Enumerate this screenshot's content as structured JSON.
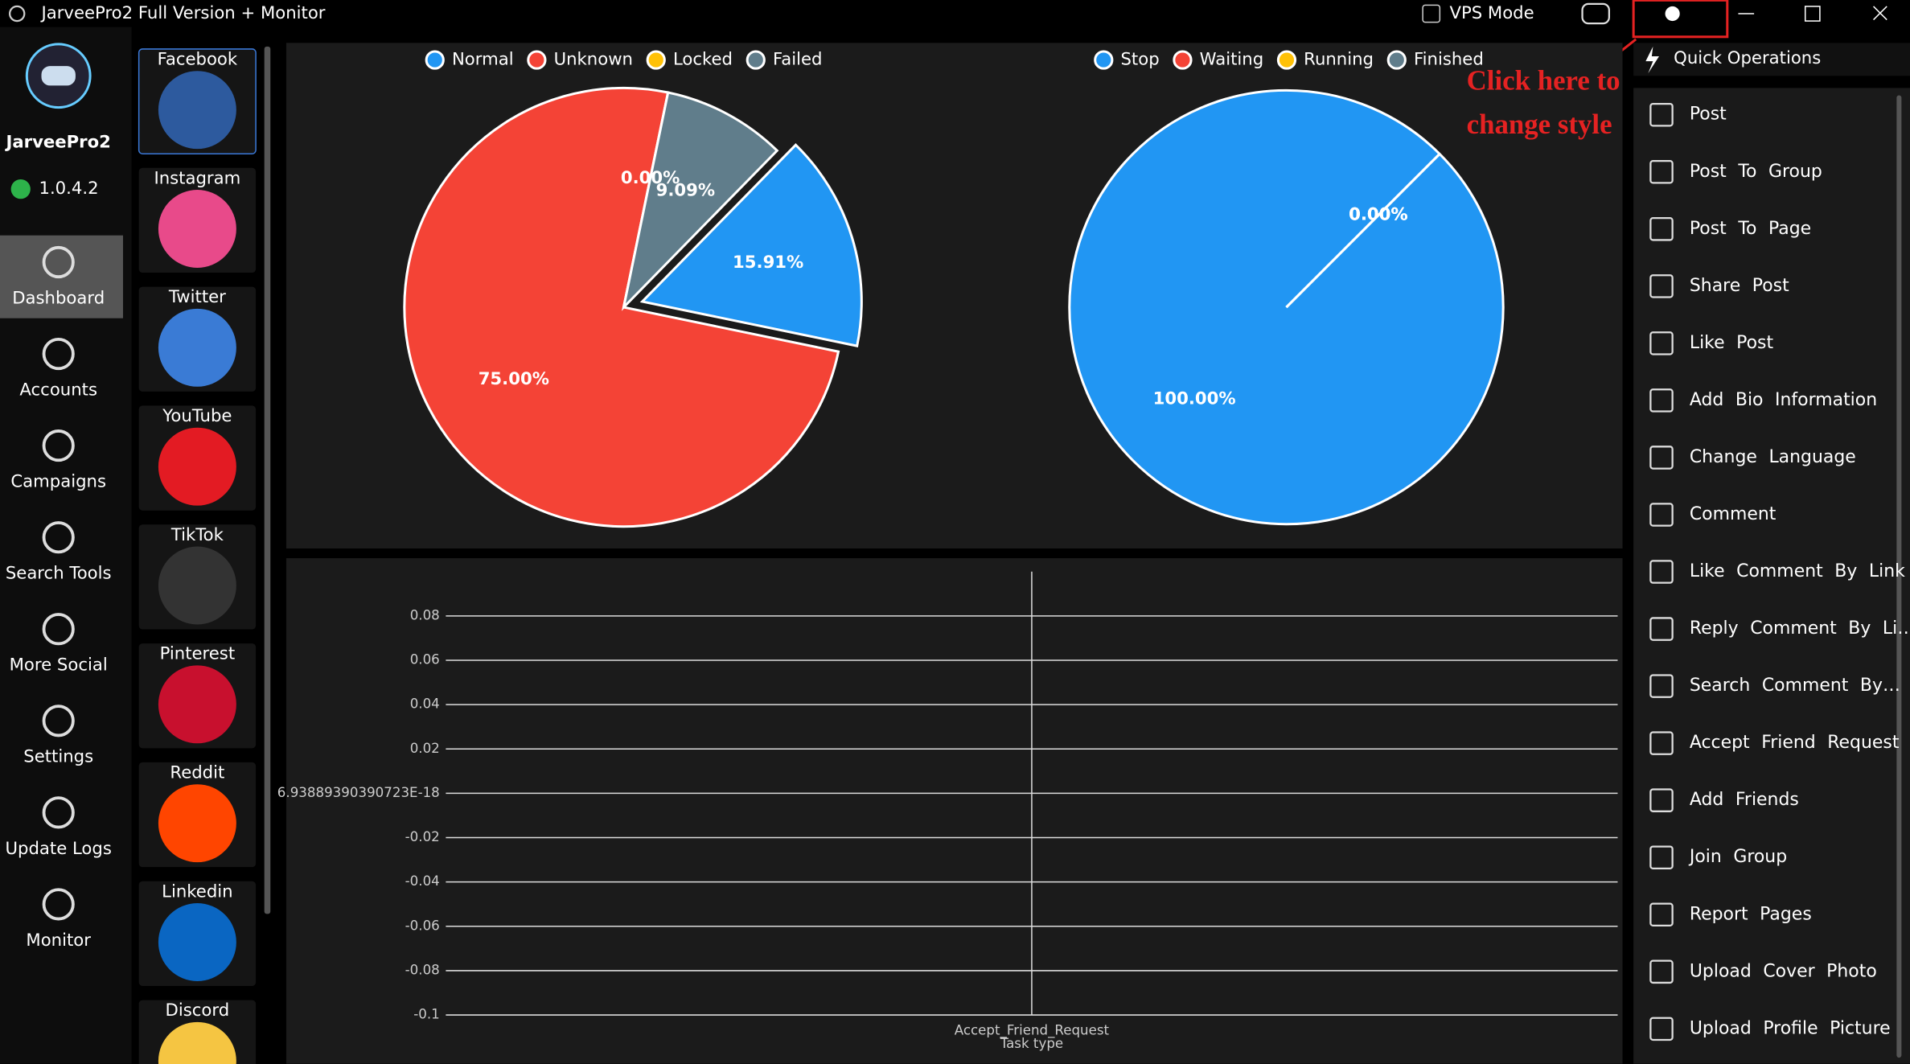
{
  "window": {
    "title": "JarveePro2 Full Version + Monitor",
    "vps_mode": "VPS Mode"
  },
  "annotation": [
    "Click here to",
    "change style"
  ],
  "sidebar": {
    "app_name": "JarveePro2",
    "version": "1.0.4.2",
    "nav": [
      "Dashboard",
      "Accounts",
      "Campaigns",
      "Search Tools",
      "More Social",
      "Settings",
      "Update Logs",
      "Monitor"
    ]
  },
  "social": [
    "Facebook",
    "Instagram",
    "Twitter",
    "YouTube",
    "TikTok",
    "Pinterest",
    "Reddit",
    "Linkedin",
    "Discord"
  ],
  "quick_operations": {
    "title": "Quick Operations",
    "items": [
      "Post",
      "Post To Group",
      "Post To Page",
      "Share Post",
      "Like Post",
      "Add Bio Information",
      "Change Language",
      "Comment",
      "Like Comment By Link",
      "Reply Comment By Li…",
      "Search Comment By…",
      "Accept Friend Request",
      "Add Friends",
      "Join Group",
      "Report Pages",
      "Upload Cover Photo",
      "Upload Profile Picture"
    ]
  },
  "chart_data": [
    {
      "type": "pie",
      "categories": [
        "Normal",
        "Unknown",
        "Locked",
        "Failed"
      ],
      "values": [
        15.91,
        75.0,
        0.0,
        9.09
      ],
      "value_labels": [
        "15.91%",
        "75.00%",
        "0.00%",
        "9.09%"
      ],
      "colors": [
        "#2196f3",
        "#f44336",
        "#ffc107",
        "#607d8b"
      ]
    },
    {
      "type": "pie",
      "categories": [
        "Stop",
        "Waiting",
        "Running",
        "Finished"
      ],
      "values": [
        100.0,
        0.0,
        0.0,
        0.0
      ],
      "value_labels": [
        "100.00%",
        "0.00%",
        "0.00%",
        "0.00%"
      ],
      "colors": [
        "#2196f3",
        "#f44336",
        "#ffc107",
        "#607d8b"
      ]
    },
    {
      "type": "bar",
      "categories": [
        "Accept_Friend_Request"
      ],
      "x_label": "Task type",
      "ylim": [
        -0.1,
        0.1
      ],
      "yticks": [
        -0.1,
        -0.08,
        -0.06,
        -0.04,
        -0.02,
        {
          "value": 6.93889390390723e-18,
          "label": "6.93889390390723E-18"
        },
        0.02,
        0.04,
        0.06,
        0.08
      ],
      "grid": true
    }
  ]
}
